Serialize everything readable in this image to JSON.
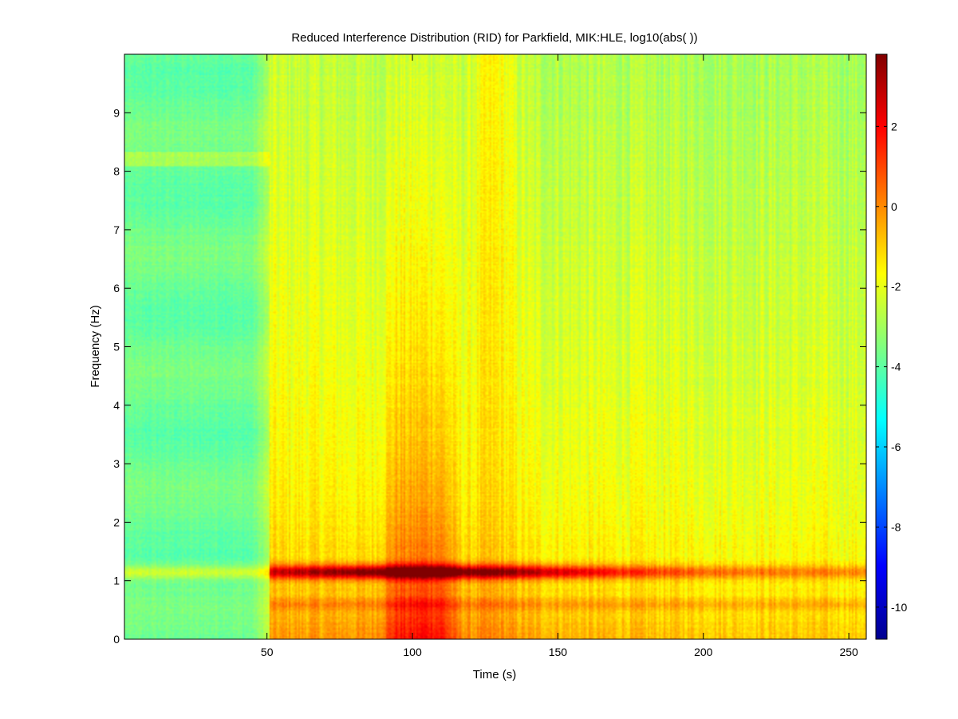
{
  "chart_data": {
    "type": "heatmap",
    "title": "Reduced Interference Distribution (RID) for Parkfield, MIK:HLE, log10(abs( ))",
    "xlabel": "Time (s)",
    "ylabel": "Frequency (Hz)",
    "xlim": [
      1,
      256
    ],
    "ylim": [
      0,
      10
    ],
    "xticks": [
      50,
      100,
      150,
      200,
      250
    ],
    "yticks": [
      0,
      1,
      2,
      3,
      4,
      5,
      6,
      7,
      8,
      9
    ],
    "colorbar": {
      "colormap": "jet",
      "clim": [
        -10.8,
        3.8
      ],
      "ticks": [
        2,
        0,
        -2,
        -4,
        -6,
        -8,
        -10
      ]
    },
    "features": {
      "background_level": -3.5,
      "pre_event_level": -3.8,
      "event_onset_time": 51,
      "coda_level": -1.9,
      "dominant_frequency_band": 1.15,
      "dominant_band_peak_level": 3.5,
      "peak_time": 103,
      "secondary_band_frequency": 0.6,
      "broadband_column_times": [
        95,
        103,
        110
      ],
      "high_freq_column_time": 128
    }
  }
}
